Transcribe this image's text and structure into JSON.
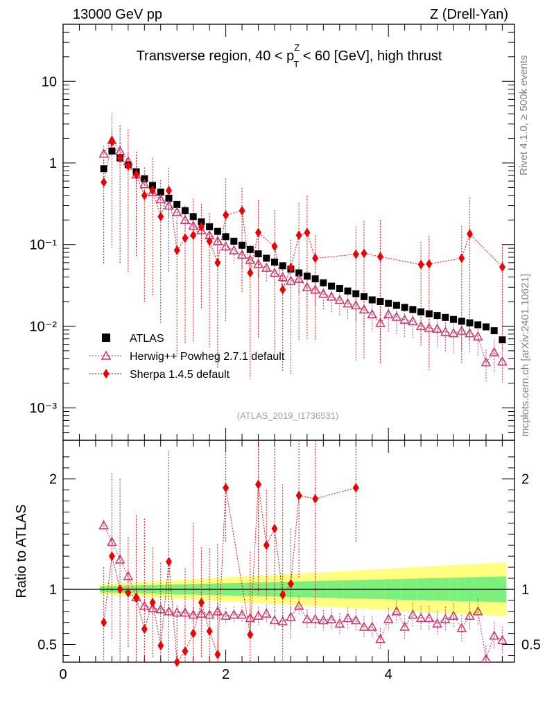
{
  "header": {
    "left": "13000 GeV pp",
    "right": "Z (Drell-Yan)",
    "plot_title": "Transverse region, 40 < p",
    "plot_title_sup": "Z",
    "plot_title_sub": "T",
    "plot_title_tail": " < 60 [GeV], high thrust",
    "side_top": "Rivet 4.1.0, ≥ 500k events",
    "side_bottom": "mcplots.cern.ch [arXiv:2401.10621]",
    "watermark": "(ATLAS_2019_I1736531)"
  },
  "chart_data": [
    {
      "type": "scatter",
      "panel": "main",
      "yscale": "log",
      "xlim": [
        0,
        5.55
      ],
      "ylim": [
        0.0004,
        50
      ],
      "xlabel": "",
      "ylabel": "",
      "ytick_labels": [
        "10",
        "1",
        "10⁻¹",
        "10⁻²",
        "10⁻³"
      ],
      "ytick_values": [
        10,
        1,
        0.1,
        0.01,
        0.001
      ],
      "legend": {
        "position": "lower-left",
        "entries": [
          "ATLAS",
          "Herwig++ Powheg 2.7.1 default",
          "Sherpa 1.4.5 default"
        ]
      },
      "series": [
        {
          "name": "ATLAS",
          "color": "#000000",
          "marker": "square",
          "x": [
            0.5,
            0.6,
            0.7,
            0.8,
            0.9,
            1.0,
            1.1,
            1.2,
            1.3,
            1.4,
            1.5,
            1.6,
            1.7,
            1.8,
            1.9,
            2.0,
            2.1,
            2.2,
            2.3,
            2.4,
            2.5,
            2.6,
            2.7,
            2.8,
            2.9,
            3.0,
            3.1,
            3.2,
            3.3,
            3.4,
            3.5,
            3.6,
            3.7,
            3.8,
            3.9,
            4.0,
            4.1,
            4.2,
            4.3,
            4.4,
            4.5,
            4.6,
            4.7,
            4.8,
            4.9,
            5.0,
            5.1,
            5.2,
            5.3,
            5.4
          ],
          "values": [
            0.85,
            1.4,
            1.15,
            0.95,
            0.78,
            0.64,
            0.53,
            0.44,
            0.37,
            0.31,
            0.26,
            0.22,
            0.19,
            0.165,
            0.145,
            0.125,
            0.11,
            0.098,
            0.087,
            0.077,
            0.068,
            0.061,
            0.055,
            0.05,
            0.045,
            0.041,
            0.038,
            0.034,
            0.031,
            0.029,
            0.027,
            0.025,
            0.023,
            0.021,
            0.02,
            0.019,
            0.018,
            0.017,
            0.016,
            0.015,
            0.0142,
            0.0135,
            0.0128,
            0.0121,
            0.0115,
            0.011,
            0.0104,
            0.0098,
            0.0088,
            0.0068
          ]
        },
        {
          "name": "Herwig++ Powheg 2.7.1 default",
          "color": "#cc3366",
          "marker": "open-triangle",
          "x": [
            0.5,
            0.6,
            0.7,
            0.8,
            0.9,
            1.0,
            1.1,
            1.2,
            1.3,
            1.4,
            1.5,
            1.6,
            1.7,
            1.8,
            1.9,
            2.0,
            2.1,
            2.2,
            2.3,
            2.4,
            2.5,
            2.6,
            2.7,
            2.8,
            2.9,
            3.0,
            3.1,
            3.2,
            3.3,
            3.4,
            3.5,
            3.6,
            3.7,
            3.8,
            3.9,
            4.0,
            4.1,
            4.2,
            4.3,
            4.4,
            4.5,
            4.6,
            4.7,
            4.8,
            4.9,
            5.0,
            5.1,
            5.2,
            5.3,
            5.4
          ],
          "values": [
            1.3,
            1.9,
            1.4,
            1.05,
            0.72,
            0.55,
            0.44,
            0.36,
            0.3,
            0.25,
            0.2,
            0.17,
            0.15,
            0.13,
            0.11,
            0.095,
            0.085,
            0.075,
            0.065,
            0.058,
            0.052,
            0.045,
            0.04,
            0.036,
            0.038,
            0.03,
            0.028,
            0.025,
            0.023,
            0.021,
            0.019,
            0.018,
            0.016,
            0.014,
            0.011,
            0.014,
            0.013,
            0.012,
            0.0115,
            0.01,
            0.0095,
            0.0093,
            0.0085,
            0.0082,
            0.0088,
            0.0082,
            0.0075,
            0.0036,
            0.0048,
            0.0037
          ]
        },
        {
          "name": "Sherpa 1.4.5 default",
          "color": "#ee0000",
          "marker": "diamond",
          "x": [
            0.5,
            0.6,
            0.7,
            0.8,
            0.9,
            1.0,
            1.1,
            1.2,
            1.3,
            1.4,
            1.5,
            1.6,
            1.7,
            1.8,
            1.9,
            2.0,
            2.2,
            2.3,
            2.4,
            2.6,
            2.7,
            2.8,
            2.9,
            3.0,
            3.1,
            3.6,
            3.7,
            3.9,
            4.4,
            4.5,
            4.9,
            5.0,
            5.4
          ],
          "values": [
            0.58,
            1.82,
            1.15,
            0.92,
            0.72,
            0.4,
            0.46,
            0.22,
            0.46,
            0.085,
            0.12,
            0.13,
            0.165,
            0.11,
            0.06,
            0.23,
            0.26,
            0.045,
            0.14,
            0.095,
            0.028,
            0.052,
            0.13,
            0.14,
            0.068,
            0.076,
            0.078,
            0.071,
            0.057,
            0.058,
            0.068,
            0.135,
            0.053
          ]
        }
      ]
    },
    {
      "type": "scatter",
      "panel": "ratio",
      "xlim": [
        0,
        5.55
      ],
      "ylim": [
        0.34,
        2.35
      ],
      "xlabel": "",
      "ylabel": "Ratio to ATLAS",
      "xtick_labels": [
        "0",
        "2",
        "4"
      ],
      "xtick_values": [
        0,
        2,
        4
      ],
      "ytick_labels": [
        "2",
        "1",
        "0.5"
      ],
      "ytick_values": [
        2,
        1,
        0.5
      ],
      "reference_line": 1,
      "series": [
        {
          "name": "Herwig++ Powheg 2.7.1 default",
          "color": "#cc3366",
          "marker": "open-triangle",
          "x": [
            0.5,
            0.6,
            0.7,
            0.8,
            0.9,
            1.0,
            1.1,
            1.2,
            1.3,
            1.4,
            1.5,
            1.6,
            1.7,
            1.8,
            1.9,
            2.0,
            2.1,
            2.2,
            2.3,
            2.4,
            2.5,
            2.6,
            2.7,
            2.8,
            2.9,
            3.0,
            3.1,
            3.2,
            3.3,
            3.4,
            3.5,
            3.6,
            3.7,
            3.8,
            3.9,
            4.0,
            4.1,
            4.2,
            4.3,
            4.4,
            4.5,
            4.6,
            4.7,
            4.8,
            4.9,
            5.0,
            5.1,
            5.2,
            5.3,
            5.4
          ],
          "values": [
            1.58,
            1.43,
            1.27,
            1.12,
            0.93,
            0.85,
            0.83,
            0.82,
            0.8,
            0.79,
            0.79,
            0.77,
            0.78,
            0.77,
            0.8,
            0.76,
            0.77,
            0.77,
            0.74,
            0.76,
            0.78,
            0.72,
            0.71,
            0.75,
            0.85,
            0.73,
            0.73,
            0.72,
            0.73,
            0.69,
            0.74,
            0.72,
            0.66,
            0.66,
            0.55,
            0.73,
            0.8,
            0.66,
            0.77,
            0.74,
            0.74,
            0.69,
            0.73,
            0.76,
            0.65,
            0.76,
            0.8,
            0.37,
            0.58,
            0.54
          ]
        },
        {
          "name": "Sherpa 1.4.5 default",
          "color": "#ee0000",
          "marker": "diamond",
          "x": [
            0.5,
            0.6,
            0.7,
            0.8,
            0.9,
            1.0,
            1.1,
            1.2,
            1.3,
            1.4,
            1.5,
            1.6,
            1.7,
            1.8,
            1.9,
            2.0,
            2.3,
            2.4,
            2.5,
            2.6,
            2.7,
            2.8,
            2.9,
            3.1,
            3.6
          ],
          "values": [
            0.7,
            1.3,
            1.0,
            0.97,
            0.92,
            0.64,
            0.88,
            0.49,
            1.25,
            0.28,
            0.44,
            0.6,
            0.88,
            0.62,
            0.41,
            1.92,
            0.59,
            1.95,
            1.4,
            1.55,
            0.95,
            1.05,
            1.85,
            1.82,
            1.92
          ]
        }
      ]
    }
  ]
}
